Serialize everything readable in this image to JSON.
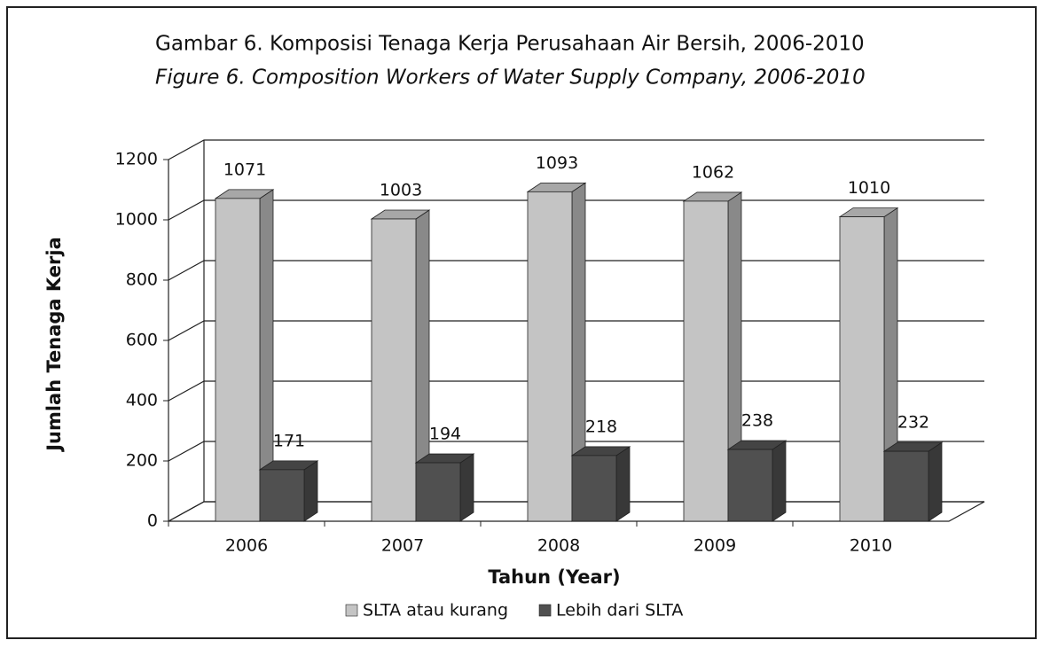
{
  "chart_data": {
    "type": "bar3d",
    "title": "Gambar 6. Komposisi Tenaga Kerja Perusahaan Air Bersih, 2006-2010",
    "subtitle": "Figure 6. Composition Workers of Water Supply Company, 2006-2010",
    "y_label": "Jumlah Tenaga Kerja",
    "x_label": "Tahun (Year)",
    "categories": [
      "2006",
      "2007",
      "2008",
      "2009",
      "2010"
    ],
    "series": [
      {
        "name": "SLTA atau kurang",
        "color": "#c4c4c4",
        "values": [
          1071,
          1003,
          1093,
          1062,
          1010
        ]
      },
      {
        "name": "Lebih dari SLTA",
        "color": "#505050",
        "values": [
          171,
          194,
          218,
          238,
          232
        ]
      }
    ],
    "ylim": [
      0,
      1200
    ],
    "yticks": [
      0,
      200,
      400,
      600,
      800,
      1000,
      1200
    ],
    "grid": true
  }
}
